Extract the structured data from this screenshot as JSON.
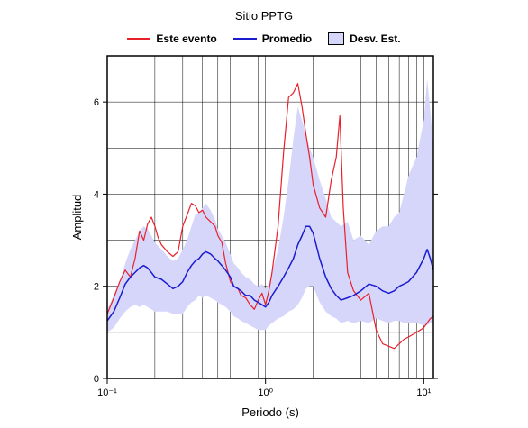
{
  "chart_data": {
    "type": "line",
    "title": "Sitio PPTG",
    "xlabel": "Periodo (s)",
    "ylabel": "Amplitud",
    "x_scale": "log",
    "xlim": [
      0.1,
      11.5
    ],
    "ylim": [
      0,
      7
    ],
    "yticks": [
      0,
      2,
      4,
      6
    ],
    "xticks": [
      0.1,
      1,
      10
    ],
    "xtick_labels": [
      "10⁻¹",
      "10⁰",
      "10¹"
    ],
    "grid": true,
    "legend_position": "top",
    "legend": [
      {
        "label": "Este evento",
        "color": "#e8202a",
        "kind": "line"
      },
      {
        "label": "Promedio",
        "color": "#1c1ccf",
        "kind": "line"
      },
      {
        "label": "Desv. Est.",
        "color": "#d6d6fb",
        "kind": "band"
      }
    ],
    "series": [
      {
        "name": "Este evento",
        "color": "#e8202a",
        "x": [
          0.1,
          0.11,
          0.12,
          0.13,
          0.14,
          0.15,
          0.16,
          0.17,
          0.18,
          0.19,
          0.2,
          0.21,
          0.22,
          0.24,
          0.26,
          0.28,
          0.3,
          0.32,
          0.34,
          0.36,
          0.38,
          0.4,
          0.42,
          0.45,
          0.48,
          0.5,
          0.53,
          0.56,
          0.6,
          0.63,
          0.67,
          0.7,
          0.75,
          0.8,
          0.85,
          0.9,
          0.95,
          1.0,
          1.05,
          1.1,
          1.2,
          1.3,
          1.4,
          1.5,
          1.6,
          1.7,
          1.8,
          1.9,
          2.0,
          2.2,
          2.4,
          2.6,
          2.8,
          2.95,
          3.1,
          3.3,
          3.6,
          4.0,
          4.5,
          5.0,
          5.5,
          6.0,
          6.5,
          7.0,
          7.5,
          8.0,
          9.0,
          10.0,
          11.0,
          11.5
        ],
        "y": [
          1.4,
          1.75,
          2.1,
          2.35,
          2.2,
          2.6,
          3.2,
          3.0,
          3.35,
          3.5,
          3.3,
          3.05,
          2.9,
          2.75,
          2.65,
          2.75,
          3.3,
          3.55,
          3.8,
          3.75,
          3.6,
          3.65,
          3.5,
          3.4,
          3.3,
          3.1,
          2.95,
          2.5,
          2.1,
          2.0,
          1.95,
          1.8,
          1.75,
          1.6,
          1.5,
          1.7,
          1.85,
          1.6,
          1.9,
          2.3,
          3.3,
          4.9,
          6.1,
          6.2,
          6.4,
          5.9,
          5.3,
          4.8,
          4.2,
          3.7,
          3.5,
          4.3,
          4.8,
          5.7,
          3.7,
          2.3,
          1.9,
          1.7,
          1.85,
          1.05,
          0.75,
          0.7,
          0.65,
          0.75,
          0.85,
          0.9,
          1.0,
          1.1,
          1.3,
          1.35
        ]
      },
      {
        "name": "Promedio",
        "color": "#1c1ccf",
        "x": [
          0.1,
          0.11,
          0.12,
          0.13,
          0.14,
          0.15,
          0.16,
          0.17,
          0.18,
          0.19,
          0.2,
          0.22,
          0.24,
          0.26,
          0.28,
          0.3,
          0.32,
          0.34,
          0.36,
          0.38,
          0.4,
          0.42,
          0.45,
          0.48,
          0.5,
          0.53,
          0.56,
          0.6,
          0.63,
          0.67,
          0.7,
          0.75,
          0.8,
          0.85,
          0.9,
          0.95,
          1.0,
          1.05,
          1.1,
          1.2,
          1.3,
          1.4,
          1.5,
          1.6,
          1.7,
          1.8,
          1.9,
          2.0,
          2.2,
          2.4,
          2.6,
          2.8,
          3.0,
          3.3,
          3.6,
          4.0,
          4.5,
          5.0,
          5.5,
          6.0,
          6.5,
          7.0,
          7.5,
          8.0,
          9.0,
          10.0,
          10.5,
          11.0,
          11.5
        ],
        "y": [
          1.25,
          1.45,
          1.75,
          2.05,
          2.2,
          2.3,
          2.4,
          2.45,
          2.4,
          2.3,
          2.2,
          2.15,
          2.05,
          1.95,
          2.0,
          2.1,
          2.3,
          2.45,
          2.55,
          2.6,
          2.7,
          2.75,
          2.7,
          2.6,
          2.55,
          2.45,
          2.35,
          2.2,
          2.0,
          1.95,
          1.9,
          1.8,
          1.8,
          1.7,
          1.65,
          1.6,
          1.55,
          1.65,
          1.8,
          2.0,
          2.2,
          2.4,
          2.6,
          2.9,
          3.1,
          3.3,
          3.3,
          3.15,
          2.6,
          2.2,
          1.95,
          1.8,
          1.7,
          1.75,
          1.8,
          1.9,
          2.05,
          2.0,
          1.9,
          1.85,
          1.9,
          2.0,
          2.05,
          2.1,
          2.3,
          2.6,
          2.8,
          2.6,
          2.35
        ]
      }
    ],
    "band": {
      "name": "Desv. Est.",
      "color": "#d6d6fb",
      "x": [
        0.1,
        0.11,
        0.12,
        0.13,
        0.14,
        0.15,
        0.16,
        0.17,
        0.18,
        0.19,
        0.2,
        0.22,
        0.24,
        0.26,
        0.28,
        0.3,
        0.32,
        0.34,
        0.36,
        0.38,
        0.4,
        0.42,
        0.45,
        0.48,
        0.5,
        0.53,
        0.56,
        0.6,
        0.63,
        0.67,
        0.7,
        0.75,
        0.8,
        0.85,
        0.9,
        0.95,
        1.0,
        1.05,
        1.1,
        1.2,
        1.3,
        1.4,
        1.5,
        1.6,
        1.7,
        1.8,
        1.9,
        2.0,
        2.2,
        2.4,
        2.6,
        2.8,
        3.0,
        3.3,
        3.6,
        4.0,
        4.5,
        5.0,
        5.5,
        6.0,
        6.5,
        7.0,
        7.5,
        8.0,
        9.0,
        10.0,
        10.5,
        11.0,
        11.5
      ],
      "upper": [
        1.5,
        1.8,
        2.1,
        2.5,
        2.8,
        3.0,
        3.2,
        3.3,
        3.25,
        3.1,
        2.95,
        2.8,
        2.65,
        2.55,
        2.6,
        2.8,
        3.0,
        3.3,
        3.55,
        3.6,
        3.7,
        3.8,
        3.65,
        3.45,
        3.25,
        3.1,
        2.95,
        2.7,
        2.5,
        2.4,
        2.3,
        2.2,
        2.15,
        2.05,
        2.0,
        2.05,
        1.95,
        2.05,
        2.3,
        2.8,
        3.5,
        4.3,
        5.2,
        5.9,
        5.6,
        5.3,
        5.0,
        4.8,
        4.3,
        3.9,
        3.5,
        3.4,
        3.3,
        3.4,
        3.0,
        3.1,
        2.9,
        3.2,
        3.3,
        3.3,
        3.5,
        3.6,
        4.0,
        4.4,
        4.8,
        5.6,
        6.5,
        5.8,
        5.0
      ],
      "lower": [
        1.0,
        1.1,
        1.3,
        1.45,
        1.55,
        1.6,
        1.55,
        1.6,
        1.55,
        1.5,
        1.45,
        1.45,
        1.45,
        1.4,
        1.4,
        1.4,
        1.55,
        1.65,
        1.7,
        1.8,
        1.75,
        1.8,
        1.75,
        1.7,
        1.65,
        1.6,
        1.55,
        1.45,
        1.35,
        1.3,
        1.25,
        1.2,
        1.15,
        1.1,
        1.05,
        1.05,
        1.05,
        1.15,
        1.2,
        1.3,
        1.35,
        1.45,
        1.5,
        1.6,
        1.75,
        1.95,
        2.0,
        2.0,
        1.65,
        1.45,
        1.35,
        1.3,
        1.2,
        1.25,
        1.2,
        1.25,
        1.2,
        1.3,
        1.25,
        1.2,
        1.25,
        1.25,
        1.2,
        1.2,
        1.2,
        1.15,
        1.15,
        1.2,
        1.2
      ]
    }
  }
}
